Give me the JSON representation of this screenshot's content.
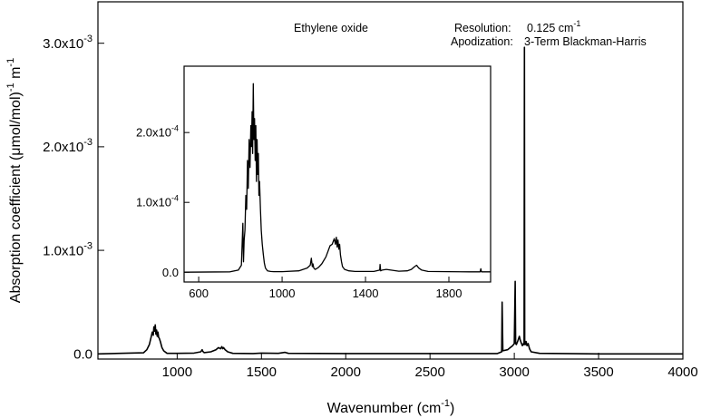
{
  "chart_data": {
    "type": "line",
    "main": {
      "xlim": [
        530,
        4000
      ],
      "ylim": [
        -5e-05,
        0.0034
      ],
      "xticks": [
        1000,
        1500,
        2000,
        2500,
        3000,
        3500,
        4000
      ],
      "xtick_labels": [
        "1000",
        "1500",
        "2000",
        "2500",
        "3000",
        "3500",
        "4000"
      ],
      "yticks": [
        0,
        0.001,
        0.002,
        0.003
      ],
      "ytick_labels": [
        "0.0",
        "1.0x10",
        "2.0x10",
        "3.0x10"
      ],
      "ytick_exponents": [
        "",
        "-3",
        "-3",
        "-3"
      ],
      "xlabel_text": "Wavenumber (cm",
      "xlabel_sup": "-1",
      "xlabel_end": ")",
      "ylabel_text": "Absorption coefficient  (",
      "ylabel_mu": "μ",
      "ylabel_mid": "mol/mol)",
      "ylabel_sup1": "-1",
      "ylabel_m": " m",
      "ylabel_sup2": "-1",
      "grid": false,
      "series": [
        {
          "x": [
            530,
            800,
            820,
            835,
            845,
            852,
            858,
            862,
            866,
            870,
            874,
            878,
            882,
            886,
            890,
            894,
            900,
            905,
            910,
            920,
            940,
            1000,
            1100,
            1140,
            1148,
            1152,
            1160,
            1200,
            1230,
            1245,
            1258,
            1265,
            1270,
            1275,
            1285,
            1300,
            1330,
            1450,
            1500,
            1600,
            1640,
            1660,
            2000,
            2900,
            2925,
            2928,
            2932,
            2960,
            2990,
            3000,
            3005,
            3008,
            3012,
            3020,
            3030,
            3036,
            3040,
            3048,
            3055,
            3058,
            3060,
            3062,
            3065,
            3070,
            3075,
            3082,
            3090,
            3100,
            3150,
            3500,
            4000
          ],
          "y": [
            0,
            1e-05,
            4e-05,
            9e-05,
            0.00016,
            0.00021,
            0.00018,
            0.00026,
            0.00022,
            0.00028,
            0.00019,
            0.00023,
            0.00017,
            0.00021,
            0.00016,
            0.00015,
            0.00012,
            9e-05,
            6e-05,
            3e-05,
            5e-06,
            5e-06,
            8e-06,
            2e-05,
            4e-05,
            2.5e-05,
            1.2e-05,
            2e-05,
            4e-05,
            6e-05,
            5e-05,
            7e-05,
            5e-05,
            6e-05,
            4e-05,
            2e-05,
            5e-06,
            3e-06,
            8e-06,
            5e-06,
            1.5e-05,
            5e-06,
            3e-06,
            3e-06,
            2e-05,
            0.0005,
            3e-05,
            4e-05,
            8e-05,
            0.0001,
            0.0007,
            0.0001,
            9e-05,
            0.00012,
            0.00017,
            0.00013,
            0.00011,
            8e-05,
            0.0001,
            9e-05,
            0.00296,
            0.0001,
            9e-05,
            0.00012,
            8e-05,
            0.0001,
            5e-05,
            2e-05,
            5e-06,
            0,
            0
          ]
        }
      ]
    },
    "inset": {
      "xlim": [
        530,
        2000
      ],
      "ylim": [
        -1.4e-05,
        0.000295
      ],
      "xticks": [
        600,
        1000,
        1400,
        1800
      ],
      "xtick_labels": [
        "600",
        "1000",
        "1400",
        "1800"
      ],
      "yticks": [
        0,
        0.0001,
        0.0002
      ],
      "ytick_labels": [
        "0.0",
        "1.0x10",
        "2.0x10"
      ],
      "ytick_exponents": [
        "",
        "-4",
        "-4"
      ],
      "series": [
        {
          "x": [
            530,
            750,
            790,
            805,
            812,
            815,
            818,
            822,
            826,
            830,
            834,
            838,
            842,
            846,
            850,
            853,
            856,
            859,
            862,
            865,
            868,
            871,
            874,
            877,
            880,
            883,
            886,
            889,
            892,
            896,
            900,
            905,
            910,
            915,
            920,
            930,
            945,
            960,
            1000,
            1080,
            1120,
            1135,
            1140,
            1145,
            1148,
            1152,
            1158,
            1165,
            1175,
            1190,
            1210,
            1230,
            1240,
            1250,
            1256,
            1260,
            1264,
            1268,
            1272,
            1276,
            1280,
            1285,
            1290,
            1300,
            1320,
            1350,
            1440,
            1468,
            1470,
            1473,
            1480,
            1500,
            1560,
            1600,
            1620,
            1635,
            1645,
            1655,
            1670,
            1700,
            1800,
            1900,
            1950,
            1953,
            1956,
            2000
          ],
          "y": [
            0,
            5e-07,
            3e-06,
            1e-05,
            7e-05,
            1.5e-05,
            4.5e-05,
            6e-05,
            0.00011,
            9e-05,
            0.00016,
            0.00012,
            0.00019,
            0.00015,
            0.00021,
            0.00018,
            0.00023,
            0.00017,
            0.00027,
            0.00019,
            0.00022,
            0.00016,
            0.00021,
            0.00013,
            0.00019,
            0.00014,
            0.00017,
            0.00011,
            0.00013,
            9e-05,
            6e-05,
            4e-05,
            2.5e-05,
            1.3e-05,
            6e-06,
            2e-06,
            1e-06,
            8e-07,
            8e-07,
            2e-06,
            6e-06,
            1e-05,
            2e-05,
            8e-06,
            1.2e-05,
            6e-06,
            4e-06,
            5e-06,
            7e-06,
            1.2e-05,
            2.2e-05,
            3.8e-05,
            4e-05,
            4.8e-05,
            4e-05,
            5e-05,
            3.6e-05,
            4.6e-05,
            3.3e-05,
            4e-05,
            2.5e-05,
            1.5e-05,
            8e-06,
            4e-06,
            2e-06,
            1e-06,
            1e-06,
            3e-06,
            1.1e-05,
            2e-06,
            3e-06,
            4e-06,
            1.5e-06,
            2e-06,
            4e-06,
            8e-06,
            1e-05,
            6e-06,
            3e-06,
            1e-06,
            8e-07,
            5e-07,
            5e-07,
            5e-06,
            5e-07,
            5e-07
          ]
        }
      ]
    },
    "annotations": {
      "species": "Ethylene oxide",
      "resolution_label": "Resolution:",
      "resolution_value": "0.125 cm",
      "resolution_sup": "-1",
      "apodization_label": "Apodization:",
      "apodization_value": "3-Term Blackman-Harris"
    }
  }
}
